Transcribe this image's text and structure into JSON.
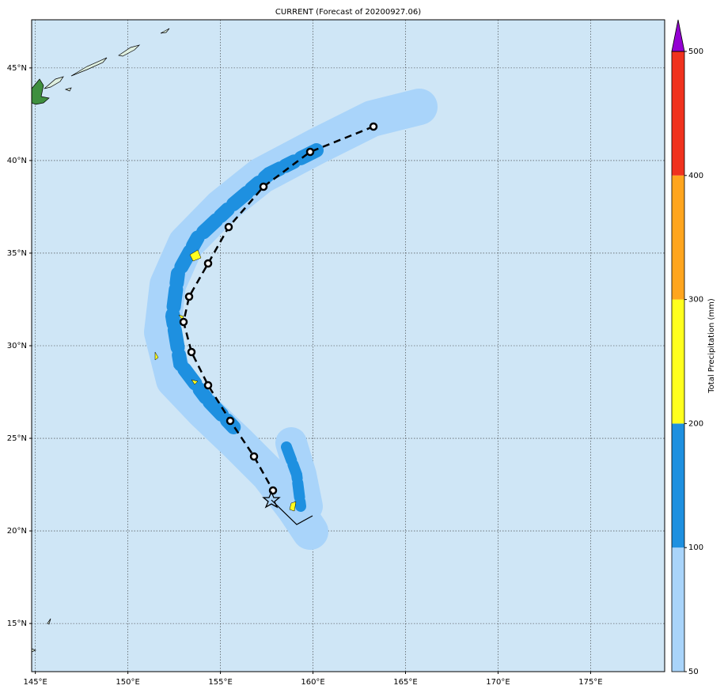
{
  "map": {
    "title": "CURRENT (Forecast of 20200927.06)",
    "lonlim": [
      144.8,
      179
    ],
    "latlim": [
      12.4,
      47.6
    ],
    "lonticks": [
      {
        "value": 145,
        "label": "145°E"
      },
      {
        "value": 150,
        "label": "150°E"
      },
      {
        "value": 155,
        "label": "155°E"
      },
      {
        "value": 160,
        "label": "160°E"
      },
      {
        "value": 165,
        "label": "165°E"
      },
      {
        "value": 170,
        "label": "170°E"
      },
      {
        "value": 175,
        "label": "175°E"
      }
    ],
    "latticks": [
      {
        "value": 15,
        "label": "15°N"
      },
      {
        "value": 20,
        "label": "20°N"
      },
      {
        "value": 25,
        "label": "25°N"
      },
      {
        "value": 30,
        "label": "30°N"
      },
      {
        "value": 35,
        "label": "35°N"
      },
      {
        "value": 40,
        "label": "40°N"
      },
      {
        "value": 45,
        "label": "45°N"
      }
    ],
    "grid": true,
    "ocean_color": "#cfe6f6"
  },
  "colorbar": {
    "label": "Total Precipitation (mm)",
    "levels": [
      50,
      100,
      200,
      300,
      400,
      500
    ],
    "colors": [
      "#a9d4fa",
      "#1e90e0",
      "#ffff1e",
      "#ffa51e",
      "#f0321e"
    ],
    "extend_color": "#9400d3"
  }
}
